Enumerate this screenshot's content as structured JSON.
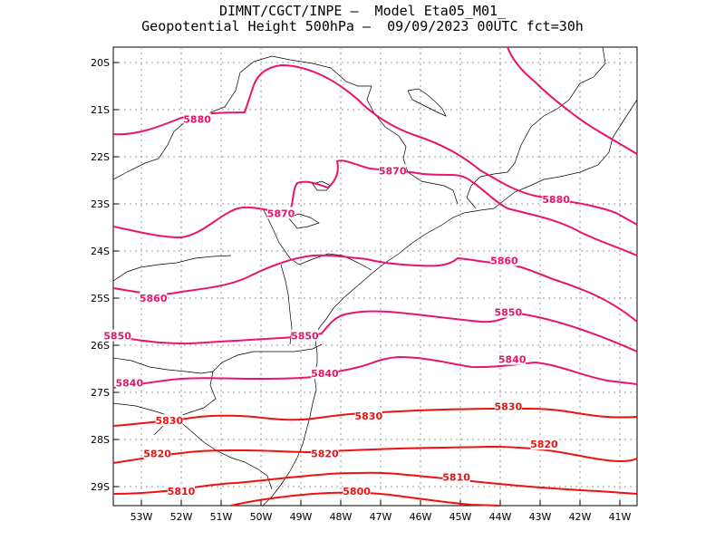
{
  "title_line1": "DIMNT/CGCT/INPE –  Model Eta05_M01_",
  "title_line2": "Geopotential Height 500hPa –  09/09/2023 00UTC fct=30h",
  "colors": {
    "high": "#e8146e",
    "low": "#f01010",
    "coast": "#000000",
    "grid": "#999999"
  },
  "axes": {
    "lat_ticks": [
      "20S",
      "21S",
      "22S",
      "23S",
      "24S",
      "25S",
      "26S",
      "27S",
      "28S",
      "29S"
    ],
    "lon_ticks": [
      "53W",
      "52W",
      "51W",
      "50W",
      "49W",
      "48W",
      "47W",
      "46W",
      "45W",
      "44W",
      "43W",
      "42W",
      "41W"
    ],
    "grid": "dotted"
  },
  "chart_data": {
    "type": "contour",
    "variable": "Geopotential Height 500hPa",
    "levels": [
      5800,
      5810,
      5820,
      5830,
      5840,
      5850,
      5860,
      5870,
      5880
    ],
    "contours": [
      {
        "level": 5880,
        "labels": [
          {
            "text": "5880",
            "lon": -51.6,
            "lat": -21.2
          },
          {
            "text": "5880",
            "lon": -42.6,
            "lat": -22.9
          }
        ]
      },
      {
        "level": 5870,
        "labels": [
          {
            "text": "5870",
            "lon": -49.5,
            "lat": -23.2
          },
          {
            "text": "5870",
            "lon": -46.7,
            "lat": -22.3
          }
        ]
      },
      {
        "level": 5860,
        "labels": [
          {
            "text": "5860",
            "lon": -52.7,
            "lat": -25.0
          },
          {
            "text": "5860",
            "lon": -43.9,
            "lat": -24.2
          }
        ]
      },
      {
        "level": 5850,
        "labels": [
          {
            "text": "5850",
            "lon": -53.6,
            "lat": -25.8
          },
          {
            "text": "5850",
            "lon": -48.9,
            "lat": -25.8
          },
          {
            "text": "5850",
            "lon": -43.8,
            "lat": -25.3
          }
        ]
      },
      {
        "level": 5840,
        "labels": [
          {
            "text": "5840",
            "lon": -53.3,
            "lat": -26.8
          },
          {
            "text": "5840",
            "lon": -48.4,
            "lat": -26.6
          },
          {
            "text": "5840",
            "lon": -43.7,
            "lat": -26.3
          }
        ]
      },
      {
        "level": 5830,
        "labels": [
          {
            "text": "5830",
            "lon": -52.3,
            "lat": -27.6
          },
          {
            "text": "5830",
            "lon": -47.3,
            "lat": -27.5
          },
          {
            "text": "5830",
            "lon": -43.8,
            "lat": -27.3
          }
        ]
      },
      {
        "level": 5820,
        "labels": [
          {
            "text": "5820",
            "lon": -52.6,
            "lat": -28.3
          },
          {
            "text": "5820",
            "lon": -48.4,
            "lat": -28.3
          },
          {
            "text": "5820",
            "lon": -42.9,
            "lat": -28.1
          }
        ]
      },
      {
        "level": 5810,
        "labels": [
          {
            "text": "5810",
            "lon": -52.0,
            "lat": -29.1
          },
          {
            "text": "5810",
            "lon": -45.1,
            "lat": -28.8
          }
        ]
      },
      {
        "level": 5800,
        "labels": [
          {
            "text": "5800",
            "lon": -47.6,
            "lat": -29.1
          }
        ]
      }
    ]
  }
}
